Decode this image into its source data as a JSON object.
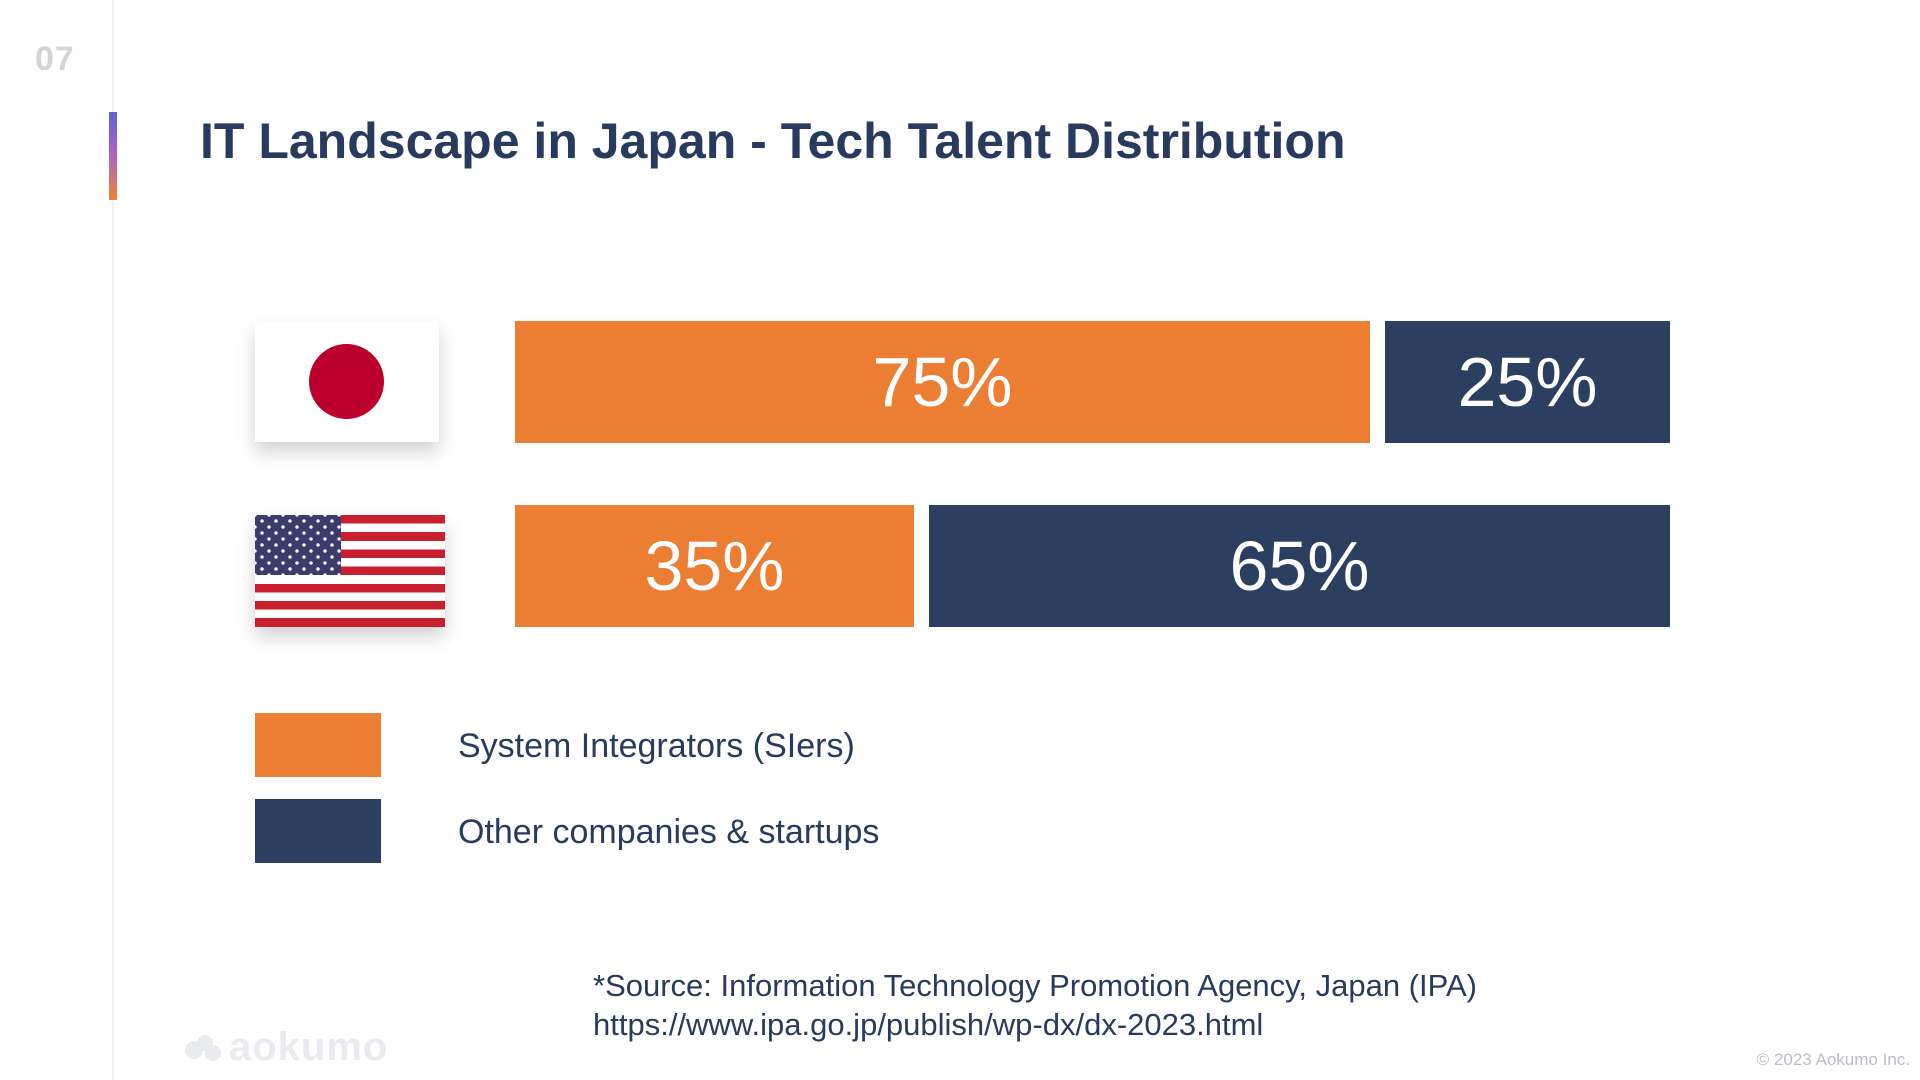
{
  "page_number": "07",
  "title": "IT Landscape in Japan - Tech Talent Distribution",
  "colors": {
    "orange": "#ec7e33",
    "navy": "#2b3f61",
    "title": "#283a5e"
  },
  "chart_data": {
    "type": "bar",
    "orientation": "horizontal",
    "stacked": true,
    "normalized_percent": true,
    "categories": [
      "Japan",
      "United States"
    ],
    "category_display": [
      "japan-flag-icon",
      "usa-flag-icon"
    ],
    "series": [
      {
        "name": "System Integrators (SIers)",
        "color": "#ec7e33",
        "values": [
          75,
          35
        ],
        "labels": [
          "75%",
          "35%"
        ]
      },
      {
        "name": "Other companies & startups",
        "color": "#2b3f61",
        "values": [
          25,
          65
        ],
        "labels": [
          "25%",
          "65%"
        ]
      }
    ],
    "xlim": [
      0,
      100
    ],
    "grid": false,
    "legend_position": "bottom-left"
  },
  "legend": [
    {
      "label": "System Integrators (SIers)",
      "color": "#ec7e33"
    },
    {
      "label": "Other companies & startups",
      "color": "#2b3f61"
    }
  ],
  "source": {
    "line1": "*Source: Information Technology Promotion Agency, Japan (IPA)",
    "line2": "https://www.ipa.go.jp/publish/wp-dx/dx-2023.html"
  },
  "logo_text": "aokumo",
  "copyright": "© 2023 Aokumo Inc."
}
